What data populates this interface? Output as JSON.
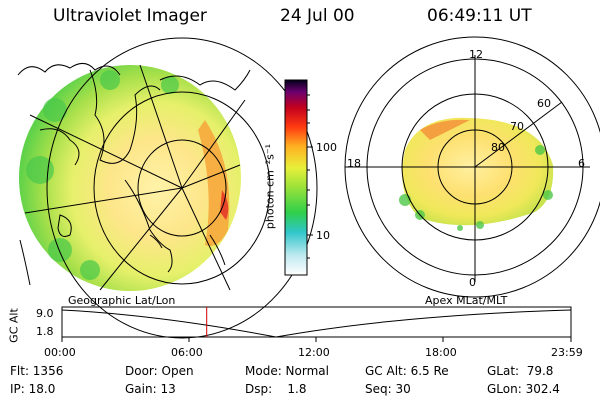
{
  "header": {
    "instrument": "Ultraviolet Imager",
    "date": "24 Jul 00",
    "time": "06:49:11 UT"
  },
  "colorbar": {
    "label": "photon cm⁻²s⁻¹",
    "ticks": [
      "100",
      "10"
    ]
  },
  "polar_plot": {
    "mlt_labels": [
      "12",
      "18",
      "6",
      "0"
    ],
    "lat_labels": [
      "60",
      "70",
      "80"
    ]
  },
  "panel_labels": {
    "left": "Geographic Lat/Lon",
    "right": "Apex MLat/MLT"
  },
  "altitude_plot": {
    "ylabel": "GC Alt",
    "yticks": [
      "9.0",
      "1.8"
    ],
    "xticks": [
      "00:00",
      "06:00",
      "12:00",
      "18:00",
      "23:59"
    ],
    "current_time_hours": 6.82,
    "marker_color": "#cc0000"
  },
  "info": {
    "flt": "Flt: 1356",
    "ip": "IP: 18.0",
    "door": "Door: Open",
    "gain": "Gain: 13",
    "mode": "Mode: Normal",
    "dsp": "Dsp:    1.8",
    "gcalt": "GC Alt: 6.5 Re",
    "seq": "Seq: 30",
    "glat": "GLat:  79.8",
    "glon": "GLon: 302.4"
  }
}
